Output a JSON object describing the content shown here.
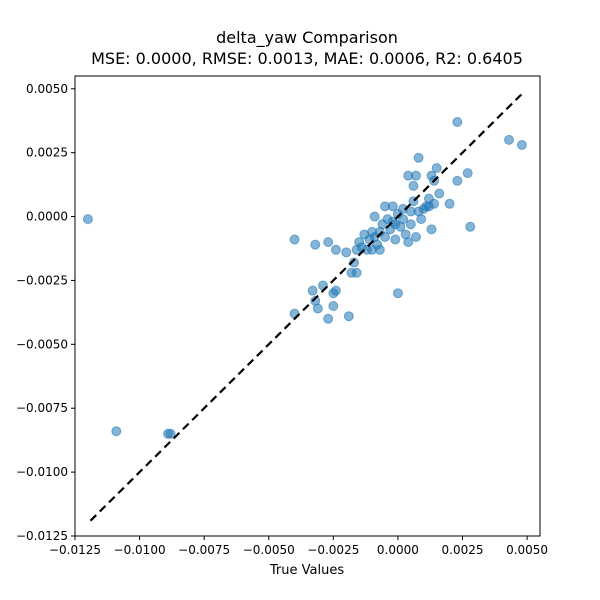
{
  "chart_data": {
    "type": "scatter",
    "title": "delta_yaw Comparison",
    "subtitle": "MSE: 0.0000, RMSE: 0.0013, MAE: 0.0006, R2: 0.6405",
    "xlabel": "True Values",
    "ylabel": "",
    "xlim": [
      -0.0125,
      0.0055
    ],
    "ylim": [
      -0.0125,
      0.0055
    ],
    "x_ticks": [
      "-0.0125",
      "-0.0100",
      "-0.0075",
      "-0.0050",
      "-0.0025",
      "0.0000",
      "0.0025",
      "0.0050"
    ],
    "y_ticks": [
      "-0.0125",
      "-0.0100",
      "-0.0075",
      "-0.0050",
      "-0.0025",
      "0.0000",
      "0.0025",
      "0.0050"
    ],
    "grid": false,
    "point_color": "#1f77b4",
    "reference_line": {
      "style": "dashed",
      "color": "#000000",
      "from": [
        -0.0119,
        -0.0119
      ],
      "to": [
        0.0049,
        0.0049
      ]
    },
    "points": [
      {
        "x": -0.012,
        "y": -0.0001
      },
      {
        "x": -0.0109,
        "y": -0.0084
      },
      {
        "x": -0.0089,
        "y": -0.0085
      },
      {
        "x": -0.0088,
        "y": -0.0085
      },
      {
        "x": -0.004,
        "y": -0.0038
      },
      {
        "x": -0.004,
        "y": -0.0009
      },
      {
        "x": -0.0033,
        "y": -0.0029
      },
      {
        "x": -0.0032,
        "y": -0.0033
      },
      {
        "x": -0.0032,
        "y": -0.0011
      },
      {
        "x": -0.0031,
        "y": -0.0036
      },
      {
        "x": -0.0029,
        "y": -0.0027
      },
      {
        "x": -0.0027,
        "y": -0.004
      },
      {
        "x": -0.0027,
        "y": -0.001
      },
      {
        "x": -0.0025,
        "y": -0.003
      },
      {
        "x": -0.0025,
        "y": -0.0035
      },
      {
        "x": -0.0024,
        "y": -0.0029
      },
      {
        "x": -0.0024,
        "y": -0.0013
      },
      {
        "x": -0.002,
        "y": -0.0014
      },
      {
        "x": -0.0019,
        "y": -0.0039
      },
      {
        "x": -0.0018,
        "y": -0.0022
      },
      {
        "x": -0.0017,
        "y": -0.0018
      },
      {
        "x": -0.0016,
        "y": -0.0022
      },
      {
        "x": -0.0016,
        "y": -0.0013
      },
      {
        "x": -0.0015,
        "y": -0.001
      },
      {
        "x": -0.0014,
        "y": -0.0012
      },
      {
        "x": -0.0013,
        "y": -0.0007
      },
      {
        "x": -0.0012,
        "y": -0.0013
      },
      {
        "x": -0.0011,
        "y": -0.0009
      },
      {
        "x": -0.001,
        "y": -0.0006
      },
      {
        "x": -0.001,
        "y": -0.0013
      },
      {
        "x": -0.0009,
        "y": -0.0008
      },
      {
        "x": -0.0009,
        "y": 0.0
      },
      {
        "x": -0.0008,
        "y": -0.0011
      },
      {
        "x": -0.0007,
        "y": -0.0013
      },
      {
        "x": -0.0007,
        "y": -0.0006
      },
      {
        "x": -0.0006,
        "y": -0.0003
      },
      {
        "x": -0.0005,
        "y": 0.0004
      },
      {
        "x": -0.0005,
        "y": -0.0008
      },
      {
        "x": -0.0004,
        "y": -0.0001
      },
      {
        "x": -0.0003,
        "y": -0.0005
      },
      {
        "x": -0.0002,
        "y": -0.0002
      },
      {
        "x": -0.0002,
        "y": 0.0004
      },
      {
        "x": -0.0001,
        "y": -0.0009
      },
      {
        "x": -0.0001,
        "y": -0.0003
      },
      {
        "x": 0.0,
        "y": -0.003
      },
      {
        "x": 0.0,
        "y": 0.0001
      },
      {
        "x": 0.0001,
        "y": -0.0004
      },
      {
        "x": 0.0002,
        "y": -0.0001
      },
      {
        "x": 0.0002,
        "y": 0.0003
      },
      {
        "x": 0.0003,
        "y": -0.0007
      },
      {
        "x": 0.0004,
        "y": -0.001
      },
      {
        "x": 0.0004,
        "y": 0.0016
      },
      {
        "x": 0.0005,
        "y": -0.0003
      },
      {
        "x": 0.0005,
        "y": 0.0002
      },
      {
        "x": 0.0006,
        "y": 0.0012
      },
      {
        "x": 0.0006,
        "y": 0.0006
      },
      {
        "x": 0.0007,
        "y": 0.0016
      },
      {
        "x": 0.0007,
        "y": -0.0008
      },
      {
        "x": 0.0008,
        "y": 0.0023
      },
      {
        "x": 0.0008,
        "y": 0.0002
      },
      {
        "x": 0.0009,
        "y": -0.0001
      },
      {
        "x": 0.001,
        "y": 0.0003
      },
      {
        "x": 0.0011,
        "y": 0.0004
      },
      {
        "x": 0.0012,
        "y": 0.0004
      },
      {
        "x": 0.0012,
        "y": 0.0007
      },
      {
        "x": 0.0013,
        "y": 0.0016
      },
      {
        "x": 0.0013,
        "y": -0.0005
      },
      {
        "x": 0.0014,
        "y": 0.0005
      },
      {
        "x": 0.0014,
        "y": 0.0014
      },
      {
        "x": 0.0015,
        "y": 0.0019
      },
      {
        "x": 0.0016,
        "y": 0.0009
      },
      {
        "x": 0.002,
        "y": 0.0005
      },
      {
        "x": 0.0023,
        "y": 0.0037
      },
      {
        "x": 0.0023,
        "y": 0.0014
      },
      {
        "x": 0.0027,
        "y": 0.0017
      },
      {
        "x": 0.0028,
        "y": -0.0004
      },
      {
        "x": 0.0043,
        "y": 0.003
      },
      {
        "x": 0.0048,
        "y": 0.0028
      }
    ]
  }
}
